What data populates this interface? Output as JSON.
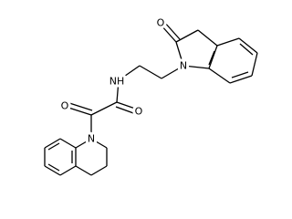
{
  "atoms": [
    {
      "label": "O"
    },
    {
      "label": "N"
    },
    {
      "label": "NH"
    },
    {
      "label": "O"
    },
    {
      "label": "O"
    },
    {
      "label": "N"
    }
  ]
}
